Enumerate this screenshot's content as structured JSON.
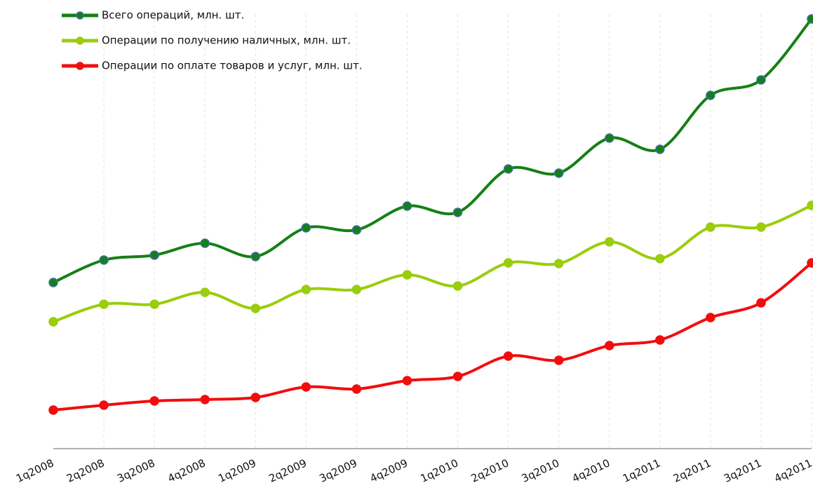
{
  "chart_data": {
    "type": "line",
    "categories": [
      "1q2008",
      "2q2008",
      "3q2008",
      "4q2008",
      "1q2009",
      "2q2009",
      "3q2009",
      "4q2009",
      "1q2010",
      "2q2010",
      "3q2010",
      "4q2010",
      "1q2011",
      "2q2011",
      "3q2011",
      "4q2011"
    ],
    "series": [
      {
        "name": "Всего операций, млн. шт.",
        "color": "#158015",
        "edgecolor": "#3b6fa8",
        "values": [
          237,
          269,
          276,
          293,
          274,
          315,
          312,
          346,
          337,
          399,
          393,
          443,
          427,
          504,
          526,
          613
        ]
      },
      {
        "name": "Операции по получению наличных, млн. шт.",
        "color": "#9acd0c",
        "values": [
          181,
          206,
          206,
          223,
          200,
          227,
          227,
          248,
          232,
          265,
          264,
          295,
          271,
          316,
          316,
          347
        ]
      },
      {
        "name": "Операции по оплате товаров и услуг, млн. шт.",
        "color": "#f20d0d",
        "values": [
          55,
          62,
          68,
          70,
          73,
          88,
          85,
          97,
          103,
          132,
          126,
          147,
          155,
          187,
          208,
          265
        ]
      }
    ],
    "ylim": [
      0,
      640
    ],
    "grid": true,
    "smooth": true
  }
}
